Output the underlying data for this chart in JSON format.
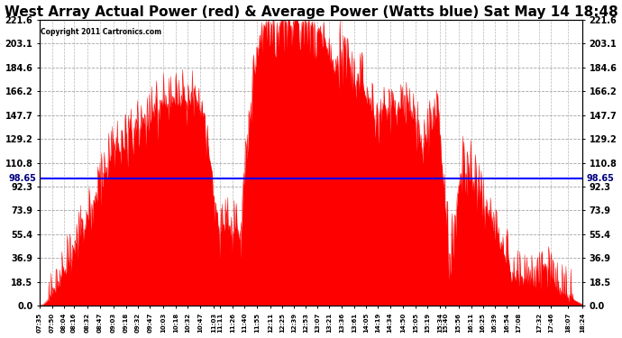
{
  "title": "West Array Actual Power (red) & Average Power (Watts blue) Sat May 14 18:48",
  "copyright": "Copyright 2011 Cartronics.com",
  "yticks": [
    0.0,
    18.5,
    36.9,
    55.4,
    73.9,
    92.3,
    110.8,
    129.2,
    147.7,
    166.2,
    184.6,
    203.1,
    221.6
  ],
  "ymax": 221.6,
  "ymin": 0.0,
  "avg_line_y": 98.65,
  "avg_label": "98.65",
  "fill_color": "#FF0000",
  "line_color": "#0000FF",
  "bg_color": "#FFFFFF",
  "grid_color": "#999999",
  "title_fontsize": 11,
  "xtick_labels": [
    "07:35",
    "07:50",
    "08:04",
    "08:16",
    "08:32",
    "08:47",
    "09:03",
    "09:18",
    "09:32",
    "09:47",
    "10:03",
    "10:18",
    "10:32",
    "10:47",
    "11:03",
    "11:11",
    "11:26",
    "11:40",
    "11:55",
    "12:11",
    "12:25",
    "12:39",
    "12:53",
    "13:07",
    "13:21",
    "13:36",
    "13:61",
    "14:05",
    "14:19",
    "14:34",
    "14:50",
    "15:05",
    "15:19",
    "15:34",
    "15:40",
    "15:56",
    "16:11",
    "16:25",
    "16:39",
    "16:54",
    "17:08",
    "17:32",
    "17:46",
    "18:07",
    "18:24"
  ]
}
